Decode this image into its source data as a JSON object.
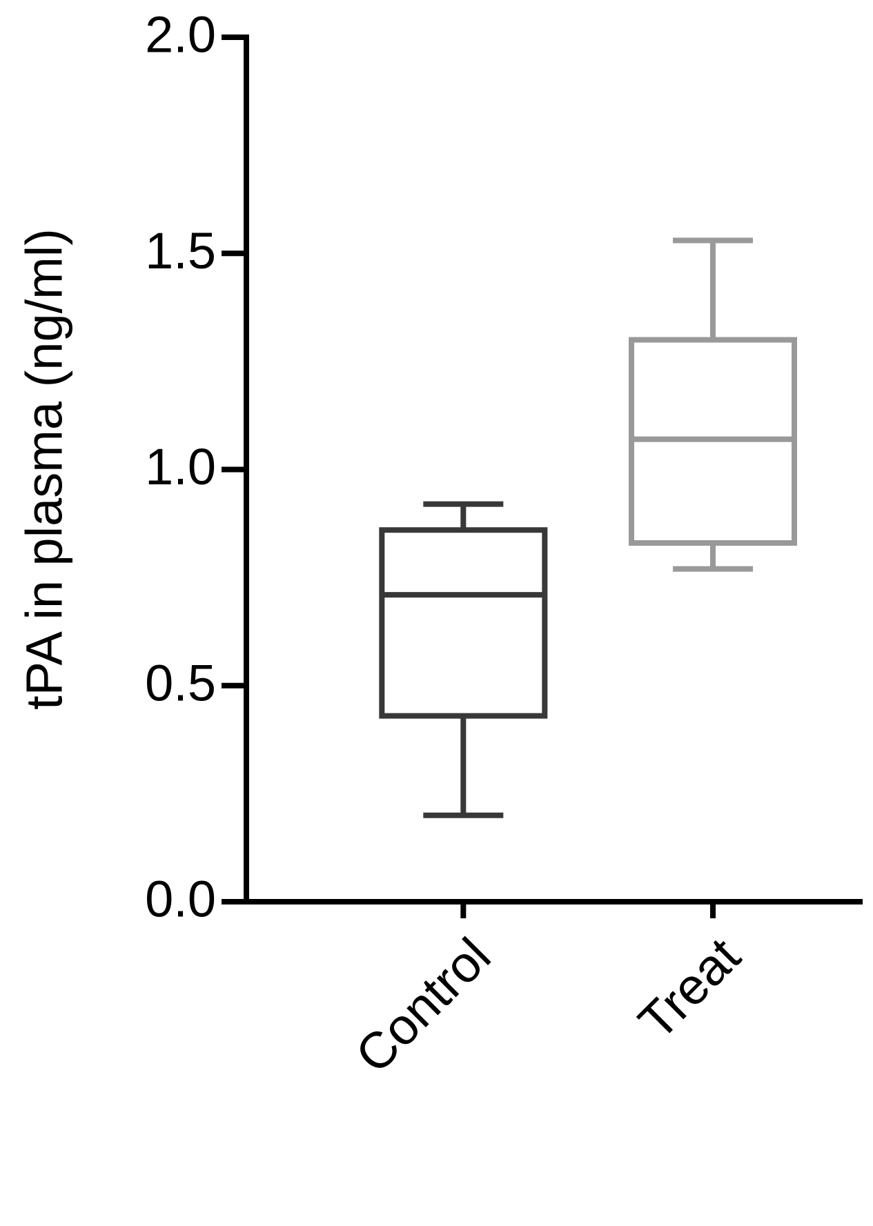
{
  "chart_data": {
    "type": "box",
    "y_label": "tPA in plasma (ng/ml)",
    "categories": [
      "Control",
      "Treat"
    ],
    "colors": [
      "#383838",
      "#999999"
    ],
    "min": [
      0.2,
      0.77
    ],
    "q1": [
      0.43,
      0.83
    ],
    "median": [
      0.71,
      1.07
    ],
    "q3": [
      0.86,
      1.3
    ],
    "max": [
      0.92,
      1.53
    ],
    "ylim": [
      0,
      2.0
    ],
    "yticks": [
      {
        "value": 0,
        "label": "0.0"
      },
      0.5,
      {
        "value": 1,
        "label": "1.0"
      },
      1.5,
      {
        "value": 2,
        "label": "2.0"
      }
    ],
    "grid": false
  }
}
